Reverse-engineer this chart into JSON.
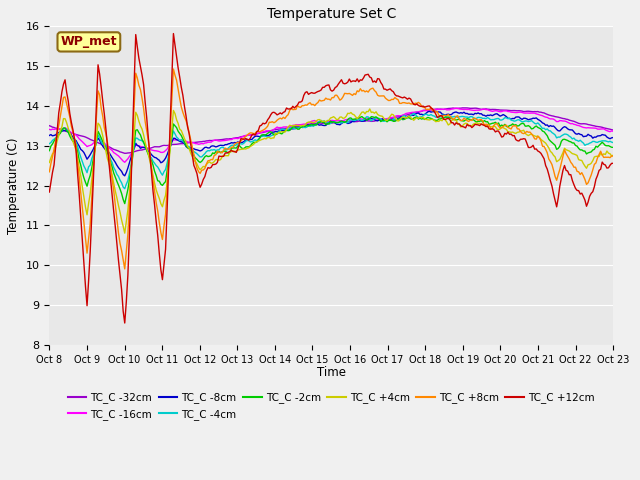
{
  "title": "Temperature Set C",
  "xlabel": "Time",
  "ylabel": "Temperature (C)",
  "ylim": [
    8.0,
    16.0
  ],
  "yticks": [
    8.0,
    9.0,
    10.0,
    11.0,
    12.0,
    13.0,
    14.0,
    15.0,
    16.0
  ],
  "x_labels": [
    "Oct 8",
    "Oct 9",
    "Oct 10",
    "Oct 11",
    "Oct 12",
    "Oct 13",
    "Oct 14",
    "Oct 15",
    "Oct 16",
    "Oct 17",
    "Oct 18",
    "Oct 19",
    "Oct 20",
    "Oct 21",
    "Oct 22",
    "Oct 23"
  ],
  "annotation": "WP_met",
  "annotation_color": "#8B0000",
  "annotation_bg": "#FFFF99",
  "annotation_edge": "#8B6914",
  "series": [
    {
      "name": "TC_C -32cm",
      "color": "#9900CC"
    },
    {
      "name": "TC_C -16cm",
      "color": "#FF00FF"
    },
    {
      "name": "TC_C -8cm",
      "color": "#0000CC"
    },
    {
      "name": "TC_C -4cm",
      "color": "#00CCCC"
    },
    {
      "name": "TC_C -2cm",
      "color": "#00CC00"
    },
    {
      "name": "TC_C +4cm",
      "color": "#CCCC00"
    },
    {
      "name": "TC_C +8cm",
      "color": "#FF8800"
    },
    {
      "name": "TC_C +12cm",
      "color": "#CC0000"
    }
  ],
  "plot_bg": "#E8E8E8",
  "fig_bg": "#F0F0F0",
  "grid_color": "#FFFFFF",
  "linewidth": 1.0
}
